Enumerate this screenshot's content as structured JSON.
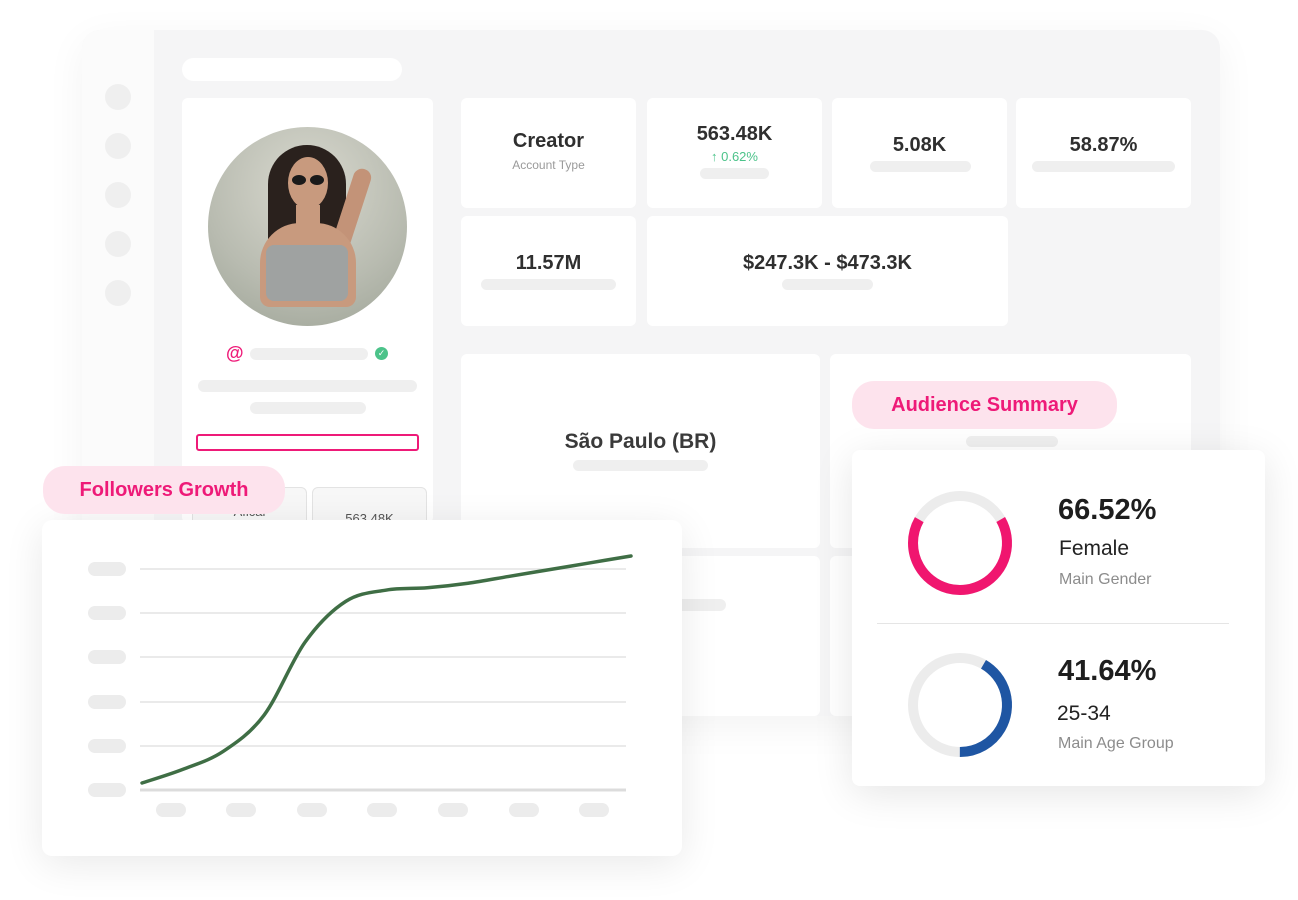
{
  "stats": {
    "account_type": {
      "value": "Creator",
      "label": "Account Type"
    },
    "followers": {
      "value": "563.48K",
      "change": "↑ 0.62%"
    },
    "stat_3": {
      "value": "5.08K"
    },
    "stat_4": {
      "value": "58.87%"
    },
    "stat_5": {
      "value": "11.57M"
    },
    "price_range": {
      "value": "$247.3K - $473.3K"
    }
  },
  "profile": {
    "at_symbol": "@",
    "mini_card_1": "Aficai",
    "mini_card_2": "563.48K"
  },
  "location": {
    "city": "São Paulo (BR)"
  },
  "followers_growth": {
    "title": "Followers Growth"
  },
  "chart_data": {
    "type": "line",
    "title": "Followers Growth",
    "xlabel": "",
    "ylabel": "",
    "grid": true,
    "x": [
      0,
      1,
      2,
      3,
      4,
      5,
      6,
      7,
      8,
      9,
      10,
      11,
      12
    ],
    "series": [
      {
        "values": [
          0.0,
          0.06,
          0.14,
          0.3,
          0.62,
          0.8,
          0.85,
          0.86,
          0.88,
          0.91,
          0.94,
          0.97,
          1.0
        ]
      }
    ],
    "ylim": [
      0,
      1
    ],
    "color": "#3f6e45"
  },
  "audience": {
    "title": "Audience Summary",
    "gender": {
      "percent": "66.52%",
      "value": "Female",
      "label": "Main Gender",
      "fraction": 0.6652,
      "color": "#f0166f"
    },
    "age": {
      "percent": "41.64%",
      "value": "25-34",
      "label": "Main Age Group",
      "fraction": 0.4164,
      "color": "#1f56a3"
    },
    "track_color": "#ececec"
  }
}
